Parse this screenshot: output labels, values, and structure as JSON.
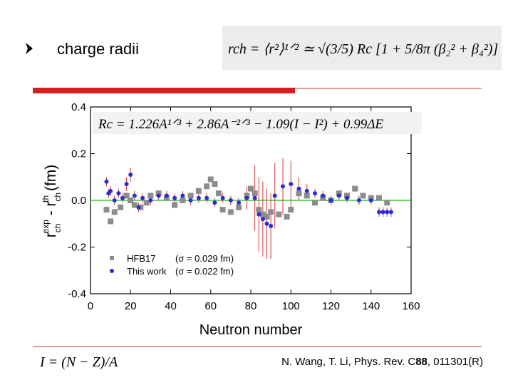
{
  "slide": {
    "title": "charge radii",
    "formula_top": "rch = ⟨r²⟩¹ᐟ² ≃ √(3/5) Rc [1 + 5/8π (β₂² + β₄²)]",
    "formula_rc": "Rc = 1.226A¹ᐟ³ + 2.86A⁻²ᐟ³ − 1.09(I − I²) + 0.99ΔE",
    "formula_i": "I = (N − Z)/A",
    "citation": {
      "before": "N. Wang, T. Li, Phys. Rev. C",
      "volume": "88",
      "after": ", 011301(R)"
    }
  },
  "chart_data": {
    "type": "scatter",
    "xlabel": "Neutron number",
    "ylabel_parts": [
      "r",
      "ch",
      "exp",
      " - r",
      "ch",
      "th",
      " (fm)"
    ],
    "xlim": [
      0,
      160
    ],
    "ylim": [
      -0.4,
      0.4
    ],
    "xticks": [
      0,
      20,
      40,
      60,
      80,
      100,
      120,
      140,
      160
    ],
    "yticks": [
      -0.4,
      -0.2,
      {
        "value": 0,
        "label": "0.0"
      },
      0.2,
      0.4
    ],
    "reference_line": {
      "value": 0,
      "color": "#33cc33"
    },
    "legend": "lower left",
    "series": [
      {
        "name": "HFB17",
        "sigma_label": "(σ = 0.029 fm)",
        "marker": "square",
        "color": "#8c8c8c",
        "x": [
          8,
          10,
          12,
          15,
          18,
          20,
          22,
          25,
          28,
          30,
          34,
          38,
          42,
          46,
          50,
          54,
          58,
          60,
          62,
          64,
          66,
          70,
          74,
          78,
          80,
          82,
          84,
          86,
          88,
          90,
          94,
          98,
          100,
          104,
          108,
          112,
          116,
          120,
          124,
          128,
          132,
          136,
          140,
          144,
          148
        ],
        "values": [
          -0.04,
          -0.09,
          -0.05,
          -0.03,
          0.02,
          0.0,
          -0.02,
          -0.03,
          -0.01,
          0.02,
          0.03,
          0.01,
          -0.02,
          0.0,
          0.02,
          0.04,
          0.06,
          0.09,
          0.07,
          0.03,
          -0.04,
          -0.05,
          -0.03,
          0.02,
          0.05,
          0.03,
          -0.04,
          -0.06,
          -0.07,
          -0.05,
          -0.06,
          -0.07,
          -0.04,
          0.03,
          0.02,
          -0.01,
          0.01,
          0.0,
          0.03,
          0.02,
          0.05,
          0.02,
          0.01,
          0.01,
          -0.01
        ]
      },
      {
        "name": "This work",
        "sigma_label": "(σ = 0.022 fm)",
        "marker": "circle",
        "color": "#2b2bdd",
        "error_color": "#d9383a",
        "x": [
          8,
          9,
          10,
          12,
          14,
          16,
          18,
          20,
          22,
          24,
          26,
          30,
          34,
          38,
          42,
          46,
          50,
          54,
          58,
          62,
          66,
          70,
          74,
          78,
          82,
          84,
          86,
          88,
          90,
          92,
          96,
          100,
          104,
          108,
          112,
          116,
          120,
          124,
          128,
          134,
          140,
          144,
          146,
          148,
          150
        ],
        "values": [
          0.08,
          0.03,
          0.04,
          0.0,
          0.03,
          0.01,
          0.07,
          0.11,
          0.02,
          -0.03,
          0.01,
          0.0,
          0.02,
          0.02,
          0.01,
          0.02,
          0.0,
          0.01,
          0.01,
          -0.01,
          0.01,
          0.0,
          -0.01,
          0.01,
          0.01,
          -0.06,
          -0.08,
          -0.1,
          -0.11,
          0.02,
          0.06,
          0.07,
          0.05,
          0.04,
          0.03,
          0.02,
          0.0,
          0.02,
          0.01,
          0.0,
          0.0,
          -0.05,
          -0.05,
          -0.05,
          -0.05
        ],
        "errors": [
          0.02,
          0.02,
          0.02,
          0.02,
          0.02,
          0.02,
          0.03,
          0.03,
          0.02,
          0.02,
          0.02,
          0.02,
          0.02,
          0.02,
          0.02,
          0.02,
          0.02,
          0.02,
          0.02,
          0.02,
          0.02,
          0.02,
          0.02,
          0.05,
          0.14,
          0.16,
          0.16,
          0.15,
          0.14,
          0.14,
          0.12,
          0.1,
          0.05,
          0.03,
          0.02,
          0.02,
          0.02,
          0.02,
          0.02,
          0.02,
          0.02,
          0.02,
          0.02,
          0.02,
          0.02
        ]
      }
    ]
  }
}
